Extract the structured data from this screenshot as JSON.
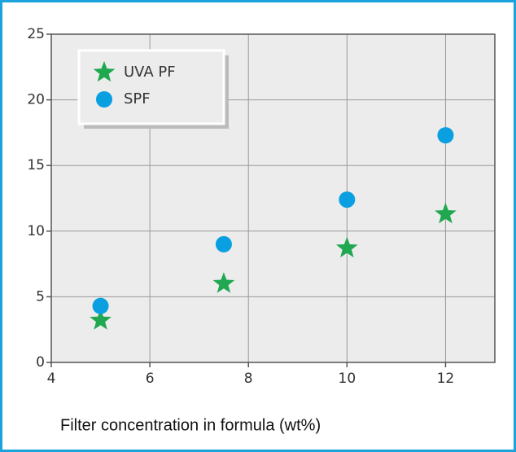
{
  "chart_data": {
    "type": "scatter",
    "x_label": "Filter concentration in formula (wt%)",
    "x": [
      5,
      7.5,
      10,
      12
    ],
    "series": [
      {
        "name": "UVA PF",
        "color": "#1fa84f",
        "marker": "star",
        "values": [
          3.2,
          6,
          8.7,
          11.3
        ]
      },
      {
        "name": "SPF",
        "color": "#0a9fe0",
        "marker": "circle",
        "values": [
          4.3,
          9,
          12.4,
          17.3
        ]
      }
    ],
    "xlim": [
      4,
      13
    ],
    "ylim": [
      0,
      25
    ],
    "xticks": [
      4,
      6,
      8,
      10,
      12
    ],
    "yticks": [
      0,
      5,
      10,
      15,
      20,
      25
    ],
    "grid": true,
    "legend": "upper left"
  }
}
